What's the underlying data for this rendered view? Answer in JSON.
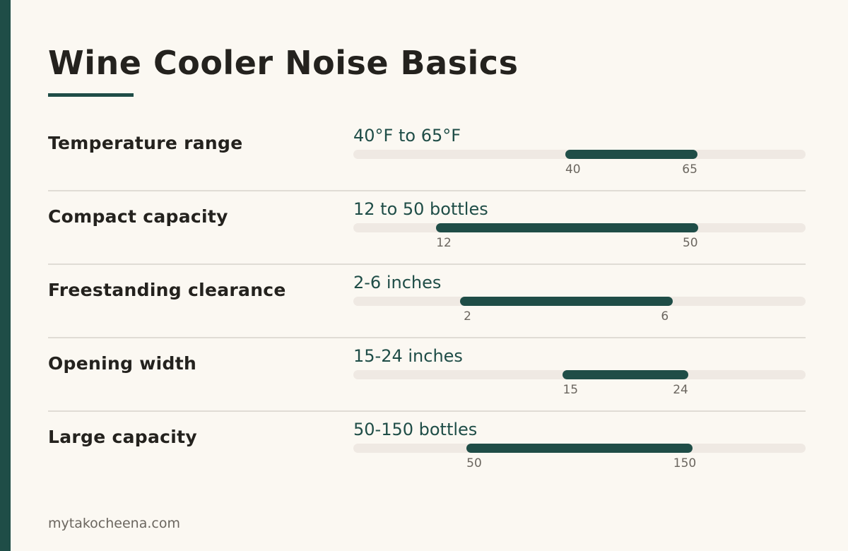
{
  "title": "Wine Cooler Noise Basics",
  "footer": "mytakocheena.com",
  "colors": {
    "accent": "#1f4d47",
    "track": "#efe9e3",
    "background": "#fbf8f2"
  },
  "chart_data": {
    "type": "bar",
    "orientation": "horizontal-range",
    "rows": [
      {
        "label": "Temperature range",
        "value_text": "40°F to 65°F",
        "low": 40,
        "high": 65,
        "low_label": "40",
        "high_label": "65",
        "scale_max": 85.4
      },
      {
        "label": "Compact capacity",
        "value_text": "12 to 50 bottles",
        "low": 12,
        "high": 50,
        "low_label": "12",
        "high_label": "50",
        "scale_max": 65.6
      },
      {
        "label": "Freestanding clearance",
        "value_text": "2-6 inches",
        "low": 2,
        "high": 6,
        "low_label": "2",
        "high_label": "6",
        "scale_max": 8.5
      },
      {
        "label": "Opening width",
        "value_text": "15-24 inches",
        "low": 15,
        "high": 24,
        "low_label": "15",
        "high_label": "24",
        "scale_max": 32.4
      },
      {
        "label": "Large capacity",
        "value_text": "50-150 bottles",
        "low": 50,
        "high": 150,
        "low_label": "50",
        "high_label": "150",
        "scale_max": 200
      }
    ]
  }
}
